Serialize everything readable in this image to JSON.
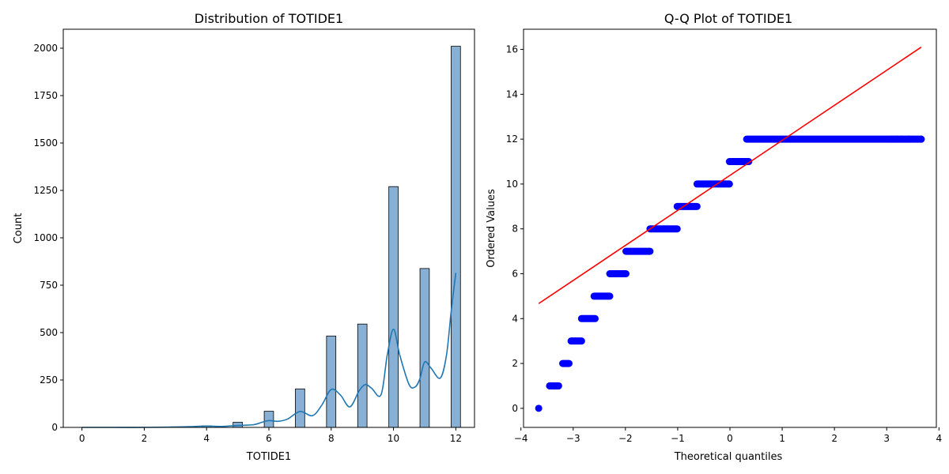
{
  "chart_data": [
    {
      "type": "bar",
      "title": "Distribution of TOTIDE1",
      "xlabel": "TOTIDE1",
      "ylabel": "Count",
      "xlim": [
        -0.6,
        12.6
      ],
      "ylim": [
        0,
        2100
      ],
      "xticks": [
        0,
        2,
        4,
        6,
        8,
        10,
        12
      ],
      "yticks": [
        0,
        250,
        500,
        750,
        1000,
        1250,
        1500,
        1750,
        2000
      ],
      "bar_color": "#7ba7cf",
      "kde_color": "#1f77b4",
      "bars": [
        {
          "x": 3,
          "value": 3
        },
        {
          "x": 4,
          "value": 8
        },
        {
          "x": 5,
          "value": 27
        },
        {
          "x": 6,
          "value": 85
        },
        {
          "x": 7,
          "value": 203
        },
        {
          "x": 8,
          "value": 482
        },
        {
          "x": 9,
          "value": 545
        },
        {
          "x": 10,
          "value": 1270
        },
        {
          "x": 11,
          "value": 838
        },
        {
          "x": 12,
          "value": 2010
        }
      ],
      "kde": {
        "x": [
          0,
          1,
          2,
          3,
          3.5,
          4,
          4.5,
          5,
          5.5,
          5.8,
          6,
          6.3,
          6.6,
          7,
          7.4,
          7.7,
          8,
          8.3,
          8.6,
          8.9,
          9.1,
          9.3,
          9.6,
          9.8,
          10,
          10.2,
          10.5,
          10.7,
          10.85,
          11,
          11.2,
          11.5,
          11.7,
          11.85,
          12
        ],
        "y": [
          0,
          0,
          0,
          2,
          4,
          7,
          5,
          10,
          14,
          28,
          36,
          32,
          44,
          84,
          62,
          118,
          200,
          170,
          108,
          194,
          226,
          206,
          172,
          382,
          518,
          382,
          226,
          214,
          258,
          345,
          314,
          260,
          380,
          610,
          815
        ]
      }
    },
    {
      "type": "scatter",
      "title": "Q-Q Plot of TOTIDE1",
      "xlabel": "Theoretical quantiles",
      "ylabel": "Ordered Values",
      "xlim": [
        -3.95,
        3.95
      ],
      "ylim": [
        -0.85,
        16.9
      ],
      "xticks": [
        -4,
        -3,
        -2,
        -1,
        0,
        1,
        2,
        3,
        4
      ],
      "yticks": [
        0,
        2,
        4,
        6,
        8,
        10,
        12,
        14,
        16
      ],
      "point_color": "#0000ff",
      "line_color": "#ff0000",
      "fit_line": {
        "x": [
          -3.66,
          3.66
        ],
        "y": [
          4.67,
          16.1
        ]
      },
      "points": [
        {
          "y": 0,
          "x_start": -3.66,
          "x_end": -3.66
        },
        {
          "y": 1,
          "x_start": -3.45,
          "x_end": -3.28
        },
        {
          "y": 2,
          "x_start": -3.2,
          "x_end": -3.08
        },
        {
          "y": 3,
          "x_start": -3.04,
          "x_end": -2.84
        },
        {
          "y": 4,
          "x_start": -2.84,
          "x_end": -2.58
        },
        {
          "y": 5,
          "x_start": -2.6,
          "x_end": -2.3
        },
        {
          "y": 6,
          "x_start": -2.3,
          "x_end": -1.99
        },
        {
          "y": 7,
          "x_start": -1.99,
          "x_end": -1.53
        },
        {
          "y": 8,
          "x_start": -1.53,
          "x_end": -1.01
        },
        {
          "y": 9,
          "x_start": -1.01,
          "x_end": -0.63
        },
        {
          "y": 10,
          "x_start": -0.63,
          "x_end": -0.01
        },
        {
          "y": 11,
          "x_start": -0.01,
          "x_end": 0.36
        },
        {
          "y": 12,
          "x_start": 0.32,
          "x_end": 3.66
        }
      ]
    }
  ]
}
